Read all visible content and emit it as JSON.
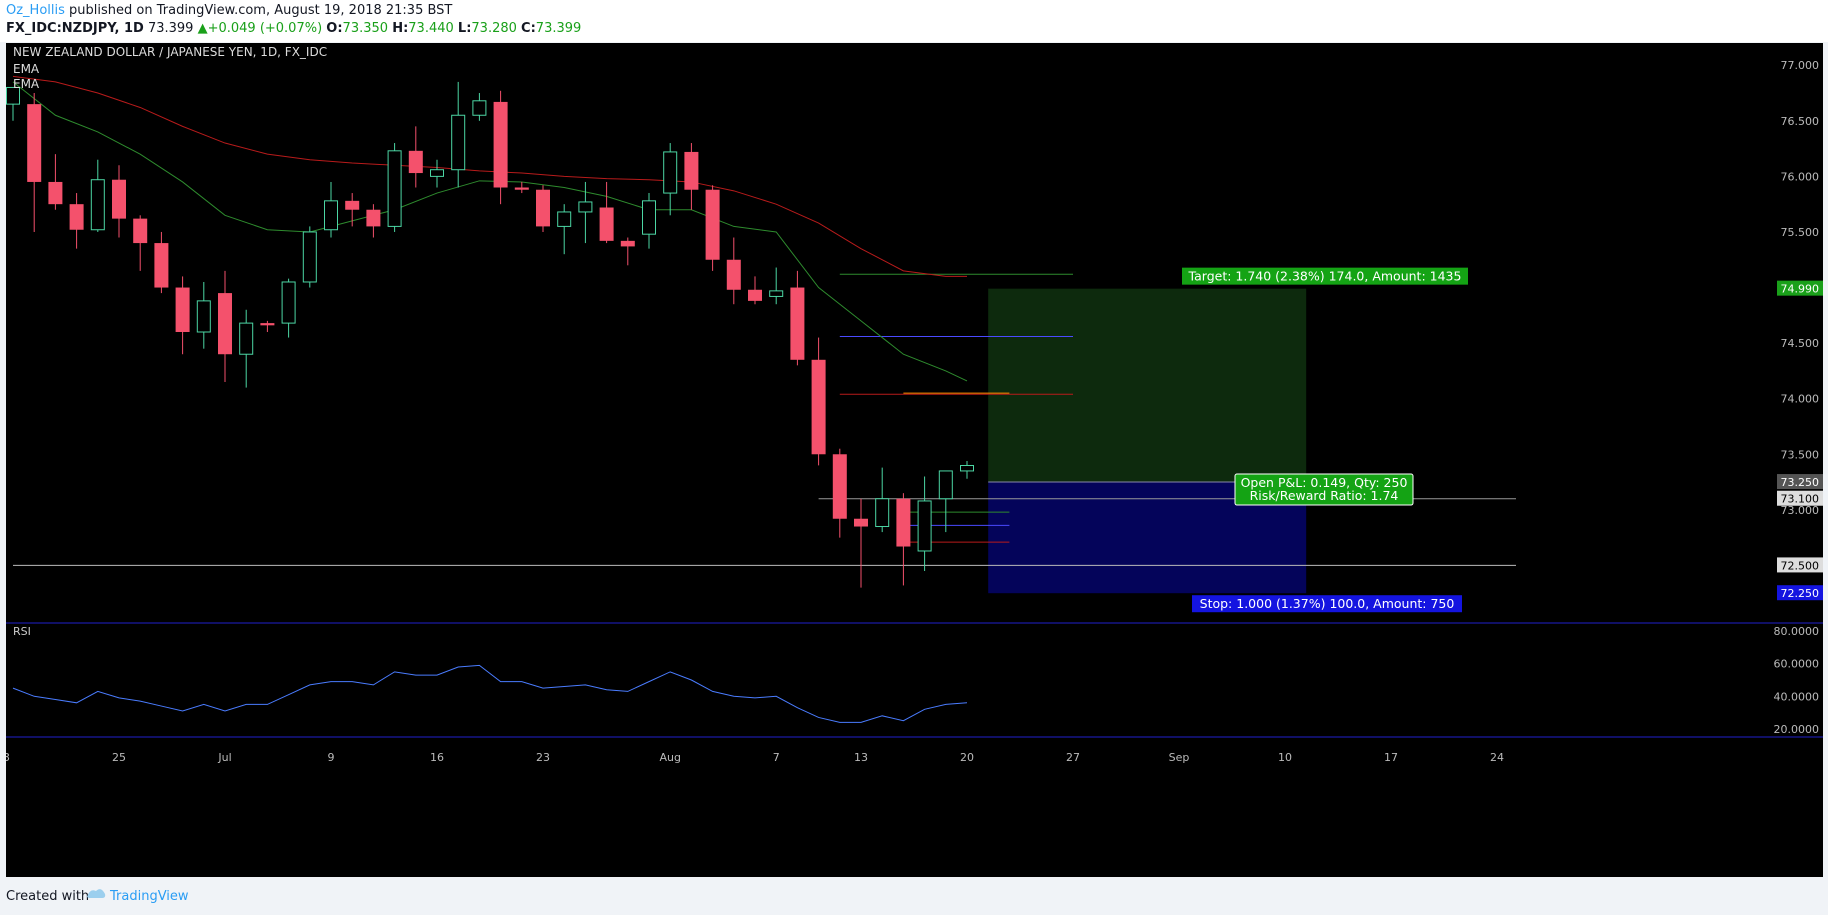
{
  "header": {
    "author": "Oz_Hollis",
    "published_text": " published on TradingView.com, August 19, 2018 21:35 BST",
    "symbol": "FX_IDC:NZDJPY, 1D",
    "last": "73.399",
    "change": "+0.049 (+0.07%)",
    "open_label": "O:",
    "open_value": "73.350",
    "high_label": "H:",
    "high_value": "73.440",
    "low_label": "L:",
    "low_value": "73.280",
    "close_label": "C:",
    "close_value": "73.399"
  },
  "footer": {
    "created_with": "Created with",
    "brand": "TradingView"
  },
  "colors": {
    "up_candle": "#4cd6a4",
    "down_candle": "#f4516c",
    "ema_fast": "#2e8b2e",
    "ema_slow": "#b81b1b",
    "rsi_line": "#4a7cff",
    "target_zone": "#0d2a0d",
    "stop_zone": "#04045a",
    "target_label_bg": "#14a314",
    "stop_label_bg": "#1414e0"
  },
  "chart_data": {
    "type": "candlestick",
    "title": "NEW ZEALAND DOLLAR / JAPANESE YEN, 1D, FX_IDC",
    "indicator_labels": [
      "EMA",
      "EMA"
    ],
    "price_axis": {
      "min": 72.0,
      "max": 77.2,
      "ticks": [
        "77.000",
        "76.500",
        "76.000",
        "75.500",
        "74.500",
        "74.000",
        "73.500",
        "73.000",
        "72.500"
      ]
    },
    "price_badges": [
      {
        "value": 74.99,
        "label": "74.990",
        "style": "green"
      },
      {
        "value": 73.25,
        "label": "73.250",
        "style": "gray"
      },
      {
        "value": 73.1,
        "label": "73.100",
        "style": "light"
      },
      {
        "value": 72.5,
        "label": "72.500",
        "style": "light"
      },
      {
        "value": 72.25,
        "label": "72.250",
        "style": "blue"
      }
    ],
    "x_axis_ticks": [
      {
        "label": "25",
        "index": 5
      },
      {
        "label": "Jul",
        "index": 10
      },
      {
        "label": "9",
        "index": 15
      },
      {
        "label": "16",
        "index": 20
      },
      {
        "label": "23",
        "index": 25
      },
      {
        "label": "Aug",
        "index": 31
      },
      {
        "label": "7",
        "index": 36
      },
      {
        "label": "13",
        "index": 40
      },
      {
        "label": "20",
        "index": 45
      },
      {
        "label": "27",
        "index": 50
      },
      {
        "label": "Sep",
        "index": 55
      },
      {
        "label": "10",
        "index": 60
      },
      {
        "label": "17",
        "index": 65
      },
      {
        "label": "24",
        "index": 70
      }
    ],
    "candles": [
      {
        "o": 76.65,
        "h": 76.8,
        "l": 76.5,
        "c": 76.8
      },
      {
        "o": 76.65,
        "h": 76.75,
        "l": 75.5,
        "c": 75.95
      },
      {
        "o": 75.95,
        "h": 76.2,
        "l": 75.7,
        "c": 75.75
      },
      {
        "o": 75.75,
        "h": 75.85,
        "l": 75.35,
        "c": 75.52
      },
      {
        "o": 75.52,
        "h": 76.15,
        "l": 75.5,
        "c": 75.97
      },
      {
        "o": 75.97,
        "h": 76.1,
        "l": 75.45,
        "c": 75.62
      },
      {
        "o": 75.62,
        "h": 75.65,
        "l": 75.15,
        "c": 75.4
      },
      {
        "o": 75.4,
        "h": 75.5,
        "l": 74.95,
        "c": 75.0
      },
      {
        "o": 75.0,
        "h": 75.1,
        "l": 74.4,
        "c": 74.6
      },
      {
        "o": 74.6,
        "h": 75.05,
        "l": 74.45,
        "c": 74.88
      },
      {
        "o": 74.95,
        "h": 75.15,
        "l": 74.15,
        "c": 74.4
      },
      {
        "o": 74.4,
        "h": 74.8,
        "l": 74.1,
        "c": 74.68
      },
      {
        "o": 74.68,
        "h": 74.7,
        "l": 74.6,
        "c": 74.66
      },
      {
        "o": 74.68,
        "h": 75.08,
        "l": 74.55,
        "c": 75.05
      },
      {
        "o": 75.05,
        "h": 75.55,
        "l": 75.0,
        "c": 75.5
      },
      {
        "o": 75.52,
        "h": 75.95,
        "l": 75.45,
        "c": 75.78
      },
      {
        "o": 75.78,
        "h": 75.85,
        "l": 75.55,
        "c": 75.7
      },
      {
        "o": 75.7,
        "h": 75.75,
        "l": 75.45,
        "c": 75.55
      },
      {
        "o": 75.55,
        "h": 76.3,
        "l": 75.5,
        "c": 76.23
      },
      {
        "o": 76.23,
        "h": 76.45,
        "l": 75.9,
        "c": 76.03
      },
      {
        "o": 76.0,
        "h": 76.15,
        "l": 75.9,
        "c": 76.06
      },
      {
        "o": 76.06,
        "h": 76.85,
        "l": 75.9,
        "c": 76.55
      },
      {
        "o": 76.55,
        "h": 76.75,
        "l": 76.5,
        "c": 76.68
      },
      {
        "o": 76.67,
        "h": 76.77,
        "l": 75.75,
        "c": 75.9
      },
      {
        "o": 75.9,
        "h": 75.95,
        "l": 75.85,
        "c": 75.88
      },
      {
        "o": 75.88,
        "h": 75.92,
        "l": 75.5,
        "c": 75.55
      },
      {
        "o": 75.55,
        "h": 75.75,
        "l": 75.3,
        "c": 75.68
      },
      {
        "o": 75.68,
        "h": 75.95,
        "l": 75.4,
        "c": 75.77
      },
      {
        "o": 75.72,
        "h": 75.95,
        "l": 75.4,
        "c": 75.42
      },
      {
        "o": 75.42,
        "h": 75.45,
        "l": 75.2,
        "c": 75.37
      },
      {
        "o": 75.48,
        "h": 75.85,
        "l": 75.35,
        "c": 75.78
      },
      {
        "o": 75.85,
        "h": 76.3,
        "l": 75.65,
        "c": 76.22
      },
      {
        "o": 76.22,
        "h": 76.3,
        "l": 75.7,
        "c": 75.88
      },
      {
        "o": 75.88,
        "h": 75.92,
        "l": 75.15,
        "c": 75.25
      },
      {
        "o": 75.25,
        "h": 75.45,
        "l": 74.85,
        "c": 74.98
      },
      {
        "o": 74.98,
        "h": 75.1,
        "l": 74.85,
        "c": 74.88
      },
      {
        "o": 74.92,
        "h": 75.18,
        "l": 74.85,
        "c": 74.97
      },
      {
        "o": 75.0,
        "h": 75.15,
        "l": 74.3,
        "c": 74.35
      },
      {
        "o": 74.35,
        "h": 74.55,
        "l": 73.4,
        "c": 73.5
      },
      {
        "o": 73.5,
        "h": 73.55,
        "l": 72.75,
        "c": 72.92
      },
      {
        "o": 72.92,
        "h": 73.1,
        "l": 72.3,
        "c": 72.85
      },
      {
        "o": 72.85,
        "h": 73.38,
        "l": 72.8,
        "c": 73.1
      },
      {
        "o": 73.1,
        "h": 73.15,
        "l": 72.32,
        "c": 72.67
      },
      {
        "o": 72.63,
        "h": 73.3,
        "l": 72.45,
        "c": 73.08
      },
      {
        "o": 73.1,
        "h": 73.35,
        "l": 72.8,
        "c": 73.35
      },
      {
        "o": 73.35,
        "h": 73.44,
        "l": 73.28,
        "c": 73.399
      }
    ],
    "ema_fast": [
      [
        0,
        76.85
      ],
      [
        2,
        76.55
      ],
      [
        4,
        76.4
      ],
      [
        6,
        76.2
      ],
      [
        8,
        75.95
      ],
      [
        10,
        75.65
      ],
      [
        12,
        75.52
      ],
      [
        14,
        75.5
      ],
      [
        16,
        75.6
      ],
      [
        18,
        75.7
      ],
      [
        20,
        75.85
      ],
      [
        22,
        75.96
      ],
      [
        24,
        75.95
      ],
      [
        26,
        75.9
      ],
      [
        28,
        75.82
      ],
      [
        30,
        75.7
      ],
      [
        32,
        75.7
      ],
      [
        34,
        75.55
      ],
      [
        36,
        75.5
      ],
      [
        38,
        75.0
      ],
      [
        40,
        74.7
      ],
      [
        42,
        74.4
      ],
      [
        44,
        74.25
      ],
      [
        45,
        74.16
      ]
    ],
    "ema_slow": [
      [
        0,
        76.9
      ],
      [
        2,
        76.85
      ],
      [
        4,
        76.75
      ],
      [
        6,
        76.62
      ],
      [
        8,
        76.45
      ],
      [
        10,
        76.3
      ],
      [
        12,
        76.2
      ],
      [
        14,
        76.15
      ],
      [
        16,
        76.12
      ],
      [
        18,
        76.1
      ],
      [
        20,
        76.08
      ],
      [
        22,
        76.05
      ],
      [
        24,
        76.03
      ],
      [
        26,
        76.0
      ],
      [
        28,
        75.98
      ],
      [
        30,
        75.97
      ],
      [
        32,
        75.95
      ],
      [
        34,
        75.87
      ],
      [
        36,
        75.75
      ],
      [
        38,
        75.58
      ],
      [
        40,
        75.35
      ],
      [
        42,
        75.15
      ],
      [
        44,
        75.1
      ],
      [
        45,
        75.1
      ]
    ],
    "horizontal_lines": [
      {
        "y": 75.12,
        "x1": 39,
        "x2": 50,
        "color": "#2e8b2e"
      },
      {
        "y": 74.56,
        "x1": 39,
        "x2": 50,
        "color": "#4a4aff"
      },
      {
        "y": 74.04,
        "x1": 39,
        "x2": 50,
        "color": "#b81b1b"
      },
      {
        "y": 74.05,
        "x1": 42,
        "x2": 47,
        "color": "#ff8c00"
      },
      {
        "y": 73.1,
        "x1": 38,
        "x2": 75,
        "color": "#999999"
      },
      {
        "y": 72.5,
        "x1": 0,
        "x2": 75,
        "color": "#bbbbbb"
      },
      {
        "y": 72.98,
        "x1": 42,
        "x2": 47,
        "color": "#2e8b2e"
      },
      {
        "y": 72.86,
        "x1": 42,
        "x2": 47,
        "color": "#4a4aff"
      },
      {
        "y": 72.71,
        "x1": 42,
        "x2": 47,
        "color": "#b81b1b"
      }
    ],
    "position": {
      "entry": 73.25,
      "target": 74.99,
      "stop": 72.25,
      "x_start": 46,
      "x_end": 61,
      "target_label": "Target: 1.740 (2.38%) 174.0, Amount: 1435",
      "stop_label": "Stop: 1.000 (1.37%) 100.0, Amount: 750",
      "pnl_label": "Open P&L: 0.149, Qty: 250",
      "rr_label": "Risk/Reward Ratio: 1.74"
    },
    "rsi": {
      "label": "RSI",
      "min": 15,
      "max": 85,
      "upper_band": 80,
      "lower_band": 20,
      "ticks": [
        "80.0000",
        "60.0000",
        "40.0000",
        "20.0000"
      ],
      "values": [
        45,
        40,
        38,
        36,
        43,
        39,
        37,
        34,
        31,
        35,
        31,
        35,
        35,
        41,
        47,
        49,
        49,
        47,
        55,
        53,
        53,
        58,
        59,
        49,
        49,
        45,
        46,
        47,
        44,
        43,
        49,
        55,
        50,
        43,
        40,
        39,
        40,
        33,
        27,
        24,
        24,
        28,
        25,
        32,
        35,
        36
      ]
    }
  }
}
